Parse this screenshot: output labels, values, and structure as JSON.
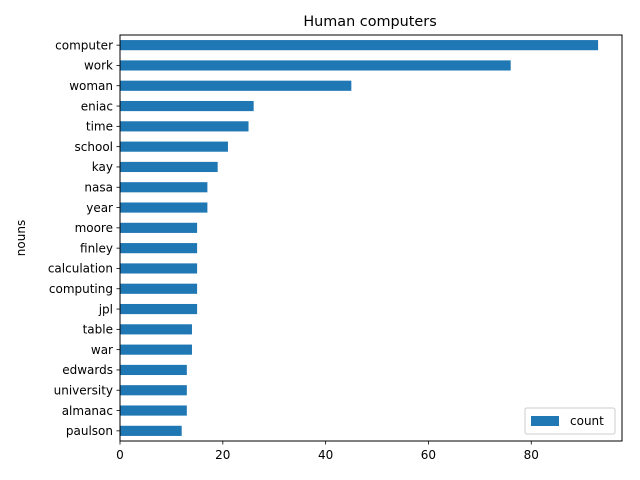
{
  "chart_data": {
    "type": "bar",
    "orientation": "horizontal",
    "title": "Human computers",
    "xlabel": "",
    "ylabel": "nouns",
    "categories": [
      "computer",
      "work",
      "woman",
      "eniac",
      "time",
      "school",
      "kay",
      "nasa",
      "year",
      "moore",
      "finley",
      "calculation",
      "computing",
      "jpl",
      "table",
      "war",
      "edwards",
      "university",
      "almanac",
      "paulson"
    ],
    "series": [
      {
        "name": "count",
        "values": [
          93,
          76,
          45,
          26,
          25,
          21,
          19,
          17,
          17,
          15,
          15,
          15,
          15,
          15,
          14,
          14,
          13,
          13,
          13,
          12
        ],
        "color": "#1f77b4"
      }
    ],
    "xlim": [
      0,
      97.65
    ],
    "xticks": [
      0,
      20,
      40,
      60,
      80
    ],
    "grid": false,
    "legend_position": "lower-right"
  }
}
